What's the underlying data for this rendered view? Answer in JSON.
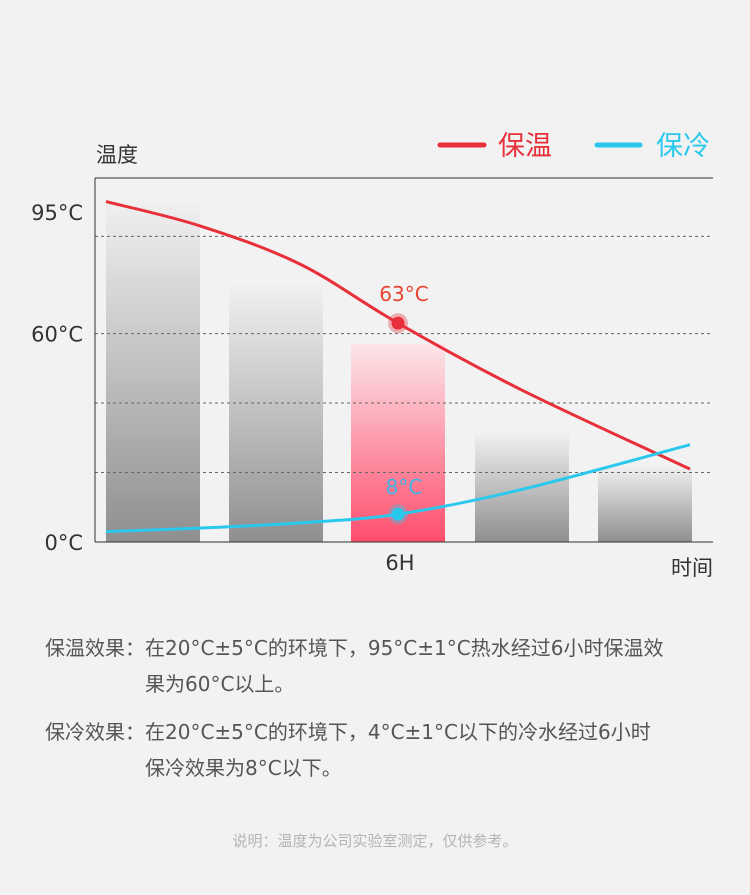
{
  "colors": {
    "warm": "#e8303a",
    "cold": "#2bc8ee",
    "warm_bar": "#ff4d6d",
    "warm_label": "#e84430",
    "cold_label": "#3bb4e8"
  },
  "chart_data": {
    "type": "bar",
    "ylabel": "温度",
    "xlabel": "时间",
    "y_ticks": [
      "95°C",
      "60°C",
      "0°C"
    ],
    "y_tick_values": [
      95,
      60,
      0
    ],
    "x_tick_label": "6H",
    "ylim": [
      0,
      100
    ],
    "grid": true,
    "legend_position": "top-right",
    "legend": [
      "保温",
      "保冷"
    ],
    "bars": [
      {
        "value": 100
      },
      {
        "value": 75
      },
      {
        "value": 57,
        "highlight": true
      },
      {
        "value": 32
      },
      {
        "value": 22
      }
    ],
    "series": [
      {
        "name": "保温",
        "values": [
          98,
          91,
          80,
          63,
          44,
          21
        ]
      },
      {
        "name": "保冷",
        "values": [
          3,
          4,
          5.5,
          8,
          15,
          28
        ]
      }
    ],
    "annotations": [
      {
        "series": "保温",
        "x": "6H",
        "value": 63,
        "label": "63°C"
      },
      {
        "series": "保冷",
        "x": "6H",
        "value": 8,
        "label": "8°C"
      }
    ]
  },
  "notes": [
    {
      "label": "保温效果：",
      "text": "在20°C±5°C的环境下，95°C±1°C热水经过6小时保温效果为60°C以上。"
    },
    {
      "label": "保冷效果：",
      "text": "在20°C±5°C的环境下，4°C±1°C以下的冷水经过6小时保冷效果为8°C以下。"
    }
  ],
  "disclaimer": "说明：温度为公司实验室测定，仅供参考。"
}
